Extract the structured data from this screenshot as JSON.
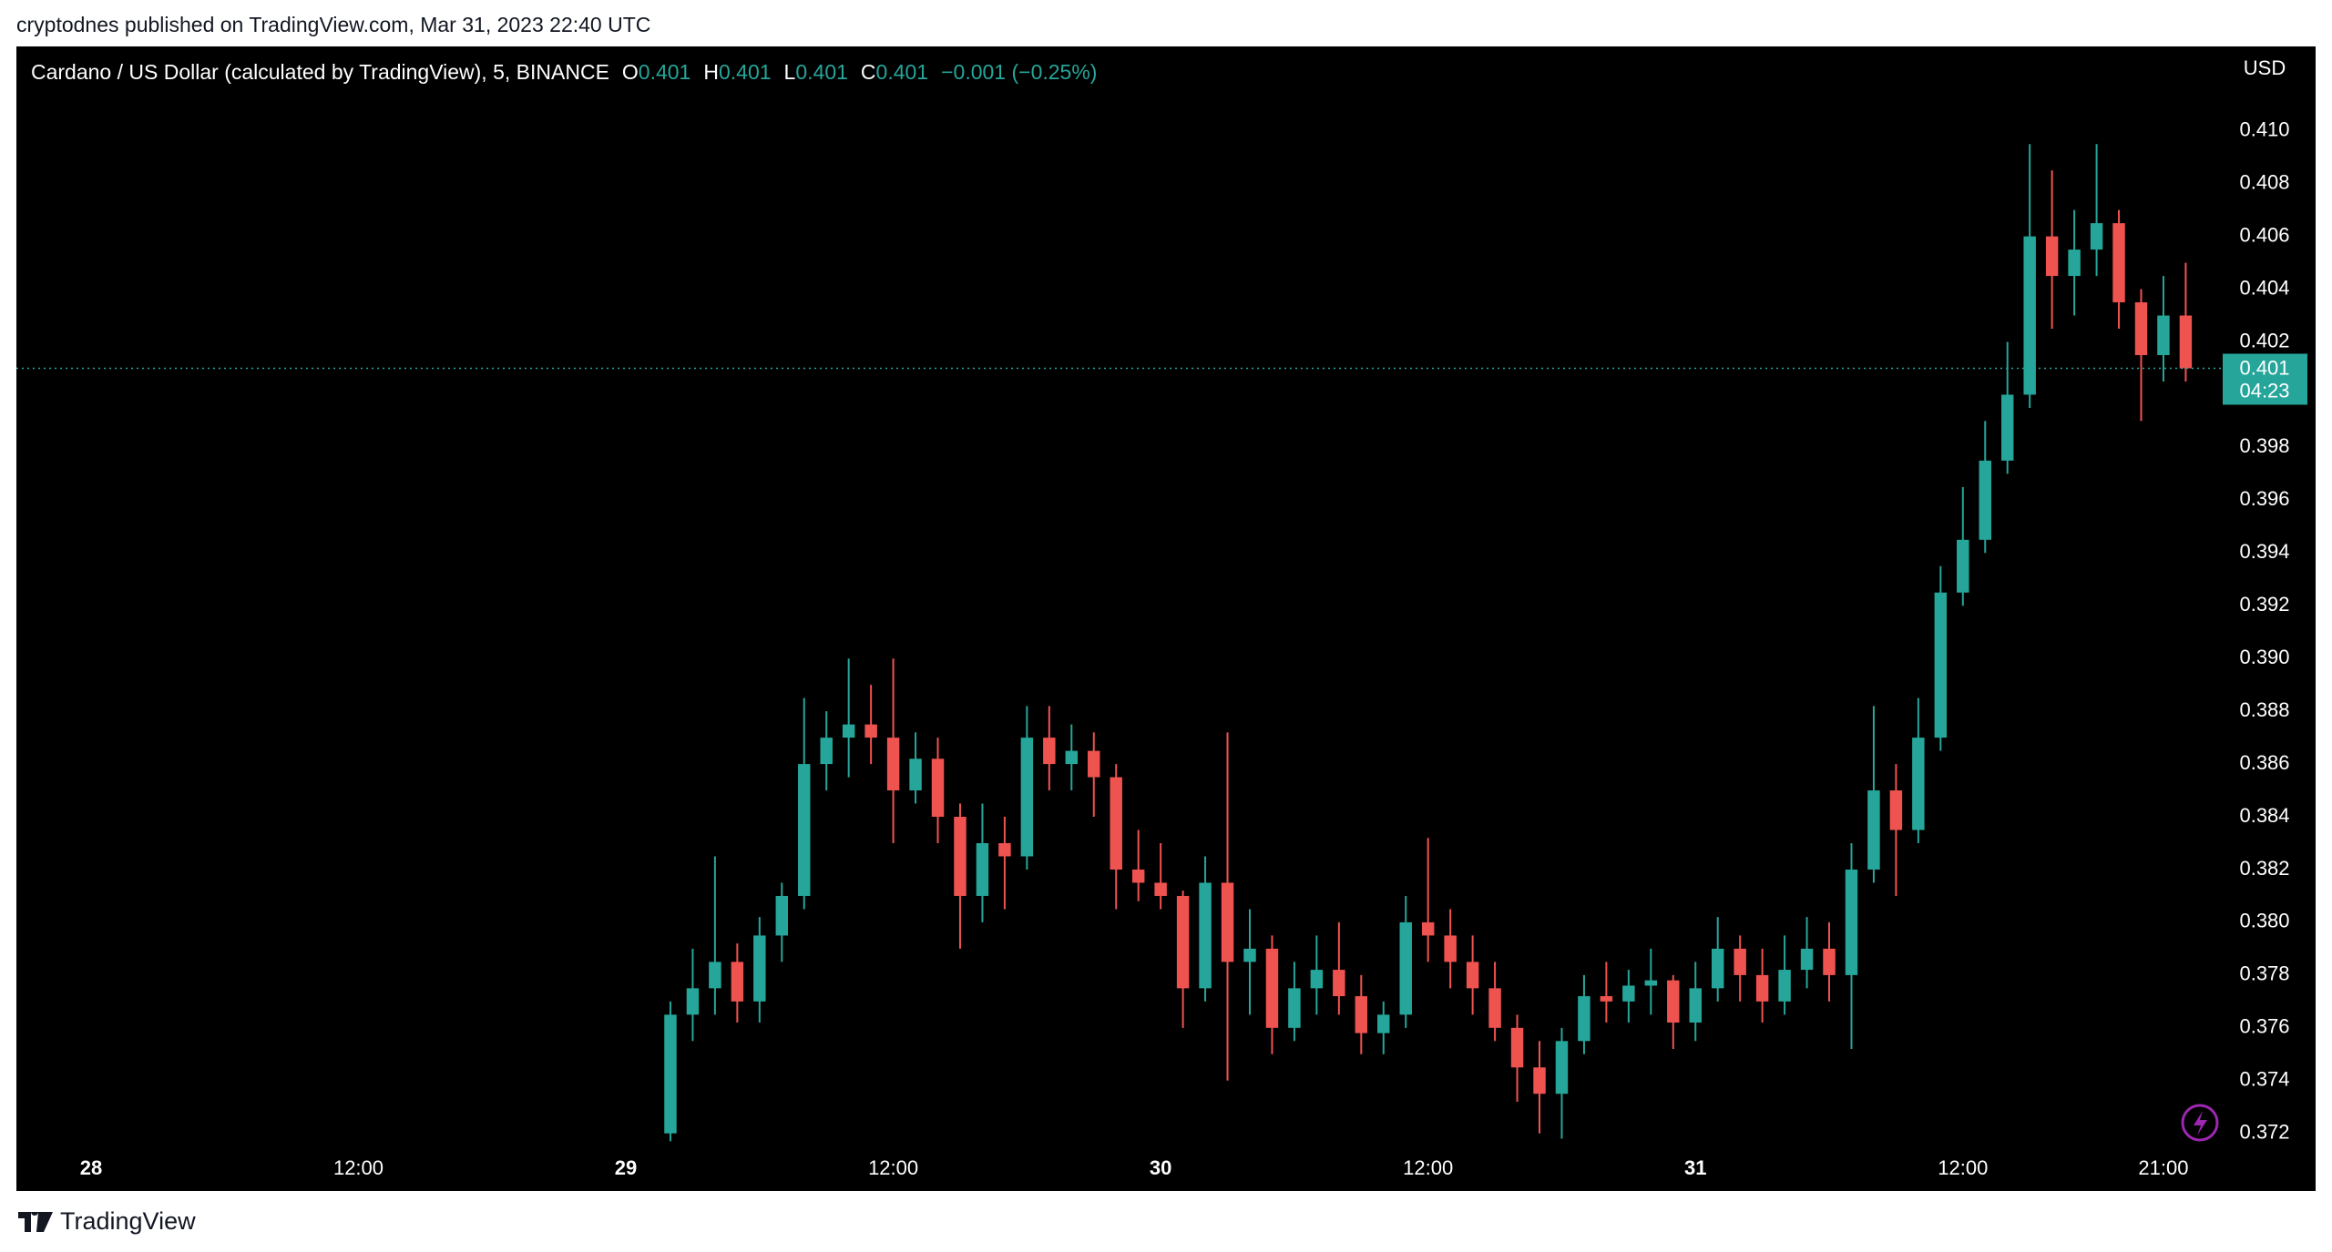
{
  "caption": "cryptodnes published on TradingView.com, Mar 31, 2023 22:40 UTC",
  "footer": "TradingView",
  "chart_data": {
    "type": "candlestick",
    "title": "Cardano / US Dollar (calculated by TradingView), 5, BINANCE",
    "legend": {
      "o_label": "O",
      "o": 0.401,
      "h_label": "H",
      "h": 0.401,
      "l_label": "L",
      "l": 0.401,
      "c_label": "C",
      "c": 0.401,
      "change": "−0.001 (−0.25%)"
    },
    "currency": "USD",
    "last_price": 0.401,
    "countdown": "04:23",
    "up_color": "#26a69a",
    "down_color": "#ef5350",
    "background": "#000000",
    "grid": false,
    "xlim": [
      -3.35,
      95.7
    ],
    "xticks": [
      {
        "value": 0,
        "label": "28"
      },
      {
        "value": 12,
        "label": "12:00"
      },
      {
        "value": 24,
        "label": "29"
      },
      {
        "value": 36,
        "label": "12:00"
      },
      {
        "value": 48,
        "label": "30"
      },
      {
        "value": 60,
        "label": "12:00"
      },
      {
        "value": 72,
        "label": "31"
      },
      {
        "value": 84,
        "label": "12:00"
      },
      {
        "value": 93,
        "label": "21:00"
      }
    ],
    "ylim": [
      0.3713,
      0.4132
    ],
    "yticks": [
      0.372,
      0.374,
      0.376,
      0.378,
      {
        "value": 0.38,
        "label": "0.380"
      },
      0.382,
      0.384,
      0.386,
      0.388,
      {
        "value": 0.39,
        "label": "0.390"
      },
      0.392,
      0.394,
      0.396,
      0.398,
      0.402,
      0.404,
      0.406,
      0.408,
      {
        "value": 0.41,
        "label": "0.410"
      }
    ],
    "x": [
      26,
      27,
      28,
      29,
      30,
      31,
      32,
      33,
      34,
      35,
      36,
      37,
      38,
      39,
      40,
      41,
      42,
      43,
      44,
      45,
      46,
      47,
      48,
      49,
      50,
      51,
      52,
      53,
      54,
      55,
      56,
      57,
      58,
      59,
      60,
      61,
      62,
      63,
      64,
      65,
      66,
      67,
      68,
      69,
      70,
      71,
      72,
      73,
      74,
      75,
      76,
      77,
      78,
      79,
      80,
      81,
      82,
      83,
      84,
      85,
      86,
      87,
      88,
      89,
      90,
      91,
      92,
      93,
      94
    ],
    "open": [
      0.372,
      0.3765,
      0.3775,
      0.3785,
      0.377,
      0.3795,
      0.381,
      0.386,
      0.387,
      0.3875,
      0.387,
      0.385,
      0.3862,
      0.384,
      0.381,
      0.383,
      0.3825,
      0.387,
      0.386,
      0.3865,
      0.3855,
      0.382,
      0.3815,
      0.381,
      0.3775,
      0.3815,
      0.3785,
      0.379,
      0.376,
      0.3775,
      0.3782,
      0.3772,
      0.3758,
      0.3765,
      0.38,
      0.3795,
      0.3785,
      0.3775,
      0.376,
      0.3745,
      0.3735,
      0.3755,
      0.3772,
      0.377,
      0.3776,
      0.3778,
      0.3762,
      0.3775,
      0.379,
      0.378,
      0.377,
      0.3782,
      0.379,
      0.378,
      0.382,
      0.385,
      0.3835,
      0.387,
      0.3925,
      0.3945,
      0.3975,
      0.4,
      0.406,
      0.4045,
      0.4055,
      0.4065,
      0.4035,
      0.4015,
      0.403
    ],
    "high": [
      0.377,
      0.379,
      0.3825,
      0.3792,
      0.3802,
      0.3815,
      0.3885,
      0.388,
      0.39,
      0.389,
      0.39,
      0.3872,
      0.387,
      0.3845,
      0.3845,
      0.384,
      0.3882,
      0.3882,
      0.3875,
      0.3872,
      0.386,
      0.3835,
      0.383,
      0.3812,
      0.3825,
      0.3872,
      0.3805,
      0.3795,
      0.3785,
      0.3795,
      0.38,
      0.378,
      0.377,
      0.381,
      0.3832,
      0.3805,
      0.3795,
      0.3785,
      0.3765,
      0.3755,
      0.376,
      0.378,
      0.3785,
      0.3782,
      0.379,
      0.378,
      0.3785,
      0.3802,
      0.3795,
      0.379,
      0.3795,
      0.3802,
      0.38,
      0.383,
      0.3882,
      0.386,
      0.3885,
      0.3935,
      0.3965,
      0.399,
      0.402,
      0.4095,
      0.4085,
      0.407,
      0.4095,
      0.407,
      0.404,
      0.4045,
      0.405
    ],
    "low": [
      0.3717,
      0.3755,
      0.3765,
      0.3762,
      0.3762,
      0.3785,
      0.3805,
      0.385,
      0.3855,
      0.386,
      0.383,
      0.3845,
      0.383,
      0.379,
      0.38,
      0.3805,
      0.382,
      0.385,
      0.385,
      0.384,
      0.3805,
      0.3808,
      0.3805,
      0.376,
      0.377,
      0.374,
      0.3765,
      0.375,
      0.3755,
      0.3765,
      0.3765,
      0.375,
      0.375,
      0.376,
      0.3785,
      0.3775,
      0.3765,
      0.3755,
      0.3732,
      0.372,
      0.3718,
      0.375,
      0.3762,
      0.3762,
      0.3765,
      0.3752,
      0.3755,
      0.377,
      0.377,
      0.3762,
      0.3765,
      0.3775,
      0.377,
      0.3752,
      0.3815,
      0.381,
      0.383,
      0.3865,
      0.392,
      0.394,
      0.397,
      0.3995,
      0.4025,
      0.403,
      0.4045,
      0.4025,
      0.399,
      0.4005,
      0.4005
    ],
    "close": [
      0.3765,
      0.3775,
      0.3785,
      0.377,
      0.3795,
      0.381,
      0.386,
      0.387,
      0.3875,
      0.387,
      0.385,
      0.3862,
      0.384,
      0.381,
      0.383,
      0.3825,
      0.387,
      0.386,
      0.3865,
      0.3855,
      0.382,
      0.3815,
      0.381,
      0.3775,
      0.3815,
      0.3785,
      0.379,
      0.376,
      0.3775,
      0.3782,
      0.3772,
      0.3758,
      0.3765,
      0.38,
      0.3795,
      0.3785,
      0.3775,
      0.376,
      0.3745,
      0.3735,
      0.3755,
      0.3772,
      0.377,
      0.3776,
      0.3778,
      0.3762,
      0.3775,
      0.379,
      0.378,
      0.377,
      0.3782,
      0.379,
      0.378,
      0.382,
      0.385,
      0.3835,
      0.387,
      0.3925,
      0.3945,
      0.3975,
      0.4,
      0.406,
      0.4045,
      0.4055,
      0.4065,
      0.4035,
      0.4015,
      0.403,
      0.401
    ]
  }
}
